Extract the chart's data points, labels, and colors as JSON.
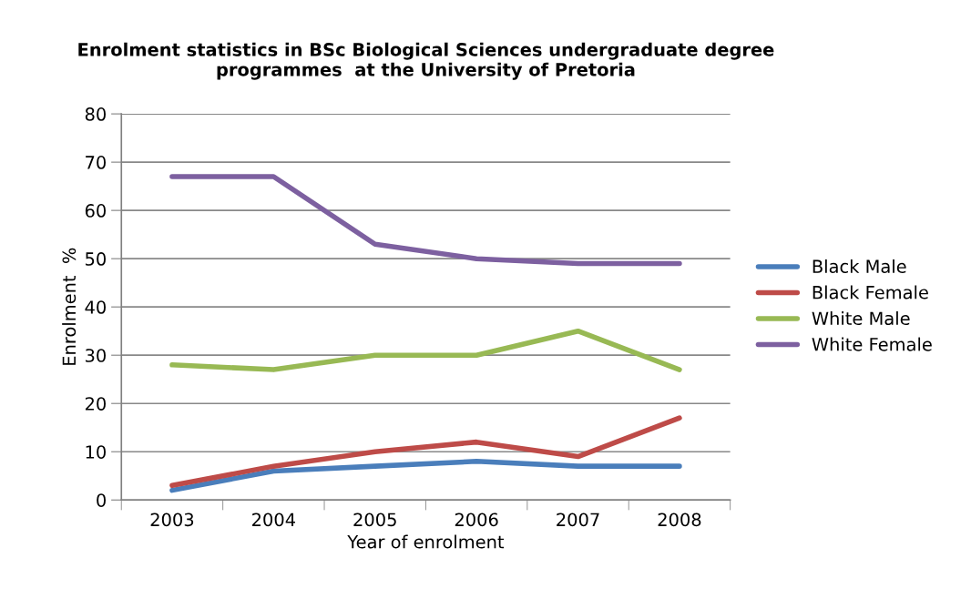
{
  "chart_data": {
    "type": "line",
    "title": "Enrolment statistics in BSc Biological Sciences undergraduate degree\nprogrammes  at the University of Pretoria",
    "xlabel": "Year of enrolment",
    "ylabel": "Enrolment  %",
    "categories": [
      "2003",
      "2004",
      "2005",
      "2006",
      "2007",
      "2008"
    ],
    "series": [
      {
        "name": "Black Male",
        "color": "#4a7ebb",
        "values": [
          2,
          6,
          7,
          8,
          7,
          7
        ]
      },
      {
        "name": "Black Female",
        "color": "#be4b48",
        "values": [
          3,
          7,
          10,
          12,
          9,
          17
        ]
      },
      {
        "name": "White Male",
        "color": "#98b954",
        "values": [
          28,
          27,
          30,
          30,
          35,
          27
        ]
      },
      {
        "name": "White Female",
        "color": "#7d60a0",
        "values": [
          67,
          67,
          53,
          50,
          49,
          49
        ]
      }
    ],
    "ylim": [
      0,
      80
    ],
    "yticks": [
      0,
      10,
      20,
      30,
      40,
      50,
      60,
      70,
      80
    ],
    "grid": "y",
    "legend": "right",
    "marker": "none",
    "line_style": "solid"
  }
}
